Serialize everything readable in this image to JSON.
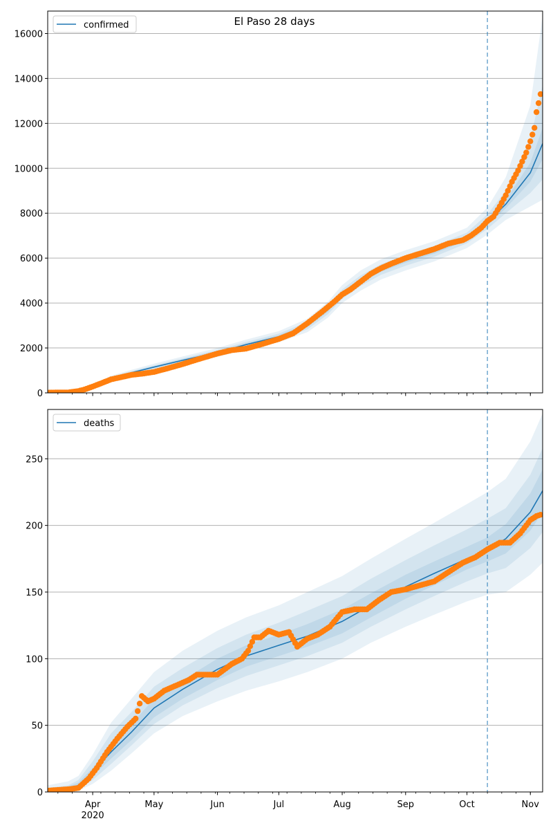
{
  "figure_title": "El Paso 28 days",
  "colors": {
    "model_line": "#1f77b4",
    "observed_points": "#ff7f0e",
    "band": "#1f77b4",
    "cutoff_line": "#1f77b4",
    "grid": "#b0b0b0"
  },
  "chart_data": [
    {
      "type": "line",
      "id": "confirmed",
      "title": "El Paso 28 days",
      "legend": {
        "label": "confirmed",
        "placement": "top-left"
      },
      "x_axis_labels": [
        "Apr",
        "May",
        "Jun",
        "Jul",
        "Aug",
        "Sep",
        "Oct",
        "Nov"
      ],
      "x_axis_year": "2020",
      "xlim": [
        "2020-03-10",
        "2020-11-07"
      ],
      "ylim": [
        0,
        17000
      ],
      "yticks": [
        0,
        2000,
        4000,
        6000,
        8000,
        10000,
        12000,
        14000,
        16000
      ],
      "ytick_labels": [
        "0",
        "2000",
        "4000",
        "6000",
        "8000",
        "10000",
        "12000",
        "14000",
        "16000"
      ],
      "forecast_start": "2020-10-11",
      "grid": "horizontal",
      "model": {
        "name": "confirmed",
        "x": [
          "2020-03-10",
          "2020-03-20",
          "2020-03-25",
          "2020-04-01",
          "2020-04-10",
          "2020-04-20",
          "2020-05-01",
          "2020-05-15",
          "2020-06-01",
          "2020-06-15",
          "2020-07-01",
          "2020-07-15",
          "2020-07-25",
          "2020-08-01",
          "2020-08-10",
          "2020-08-20",
          "2020-09-01",
          "2020-09-15",
          "2020-10-01",
          "2020-10-11",
          "2020-10-20",
          "2020-11-01",
          "2020-11-07"
        ],
        "y": [
          0,
          30,
          100,
          300,
          650,
          900,
          1150,
          1450,
          1800,
          2150,
          2500,
          3000,
          3700,
          4400,
          5000,
          5500,
          5900,
          6300,
          6900,
          7600,
          8400,
          9800,
          11100
        ],
        "bands": [
          {
            "lower": [
              0,
              10,
              60,
              220,
              550,
              780,
              1000,
              1280,
              1600,
              1930,
              2250,
              2700,
              3350,
              4000,
              4550,
              5050,
              5450,
              5850,
              6450,
              7050,
              7700,
              8300,
              8600
            ],
            "upper": [
              0,
              50,
              150,
              380,
              760,
              1030,
              1300,
              1620,
              2000,
              2370,
              2750,
              3300,
              4050,
              4800,
              5450,
              5950,
              6350,
              6750,
              7350,
              8250,
              9600,
              12800,
              16800
            ]
          },
          {
            "lower": [
              0,
              20,
              75,
              250,
              590,
              830,
              1060,
              1350,
              1680,
              2020,
              2360,
              2830,
              3500,
              4180,
              4760,
              5260,
              5660,
              6060,
              6660,
              7300,
              8000,
              8900,
              9500
            ],
            "upper": [
              0,
              40,
              125,
              340,
              710,
              970,
              1230,
              1540,
              1910,
              2270,
              2640,
              3160,
              3890,
              4610,
              5230,
              5730,
              6130,
              6540,
              7140,
              7950,
              9000,
              11300,
              13700
            ]
          },
          {
            "lower": [
              0,
              25,
              90,
              275,
              620,
              870,
              1110,
              1400,
              1750,
              2090,
              2440,
              2930,
              3610,
              4300,
              4900,
              5400,
              5800,
              6200,
              6800,
              7460,
              8220,
              9400,
              10400
            ],
            "upper": [
              0,
              35,
              110,
              320,
              680,
              935,
              1190,
              1500,
              1860,
              2210,
              2570,
              3070,
              3790,
              4500,
              5100,
              5600,
              6000,
              6400,
              7000,
              7740,
              8600,
              10250,
              11800
            ]
          }
        ]
      },
      "observed": {
        "x": [
          "2020-03-10",
          "2020-03-20",
          "2020-03-25",
          "2020-03-28",
          "2020-04-01",
          "2020-04-05",
          "2020-04-10",
          "2020-04-15",
          "2020-04-20",
          "2020-04-25",
          "2020-05-01",
          "2020-05-08",
          "2020-05-15",
          "2020-05-22",
          "2020-06-01",
          "2020-06-08",
          "2020-06-15",
          "2020-06-22",
          "2020-07-01",
          "2020-07-08",
          "2020-07-15",
          "2020-07-22",
          "2020-07-28",
          "2020-08-01",
          "2020-08-05",
          "2020-08-10",
          "2020-08-15",
          "2020-08-20",
          "2020-08-25",
          "2020-09-01",
          "2020-09-08",
          "2020-09-15",
          "2020-09-22",
          "2020-09-29",
          "2020-10-03",
          "2020-10-08",
          "2020-10-11",
          "2020-10-14",
          "2020-10-17",
          "2020-10-20",
          "2020-10-23",
          "2020-10-26",
          "2020-10-28",
          "2020-10-30",
          "2020-11-01",
          "2020-11-03",
          "2020-11-04",
          "2020-11-05",
          "2020-11-06"
        ],
        "y": [
          10,
          20,
          80,
          150,
          280,
          420,
          600,
          700,
          800,
          850,
          930,
          1100,
          1280,
          1480,
          1750,
          1900,
          1970,
          2150,
          2400,
          2650,
          3100,
          3600,
          4050,
          4380,
          4600,
          4950,
          5300,
          5550,
          5750,
          6000,
          6200,
          6400,
          6650,
          6800,
          7000,
          7350,
          7650,
          7850,
          8300,
          8800,
          9400,
          9900,
          10300,
          10700,
          11200,
          11800,
          12500,
          12900,
          13300
        ]
      }
    },
    {
      "type": "line",
      "id": "deaths",
      "legend": {
        "label": "deaths",
        "placement": "top-left"
      },
      "x_axis_labels": [
        "Apr",
        "May",
        "Jun",
        "Jul",
        "Aug",
        "Sep",
        "Oct",
        "Nov"
      ],
      "x_axis_year": "2020",
      "xlim": [
        "2020-03-10",
        "2020-11-07"
      ],
      "ylim": [
        0,
        287
      ],
      "yticks": [
        0,
        50,
        100,
        150,
        200,
        250
      ],
      "ytick_labels": [
        "0",
        "50",
        "100",
        "150",
        "200",
        "250"
      ],
      "forecast_start": "2020-10-11",
      "grid": "horizontal",
      "model": {
        "name": "deaths",
        "x": [
          "2020-03-10",
          "2020-03-20",
          "2020-03-25",
          "2020-04-01",
          "2020-04-10",
          "2020-04-20",
          "2020-05-01",
          "2020-05-15",
          "2020-06-01",
          "2020-06-15",
          "2020-07-01",
          "2020-07-15",
          "2020-08-01",
          "2020-08-15",
          "2020-09-01",
          "2020-09-15",
          "2020-10-01",
          "2020-10-11",
          "2020-10-20",
          "2020-11-01",
          "2020-11-07"
        ],
        "y": [
          0,
          2,
          5,
          15,
          30,
          45,
          63,
          77,
          92,
          102,
          110,
          117,
          128,
          140,
          154,
          164,
          175,
          182,
          190,
          210,
          226
        ],
        "bands": [
          {
            "lower": [
              0,
              0,
              1,
              6,
              16,
              29,
              44,
              57,
              68,
              76,
              83,
              90,
              100,
              112,
              124,
              133,
              143,
              148,
              150,
              163,
              172
            ],
            "upper": [
              5,
              8,
              12,
              28,
              52,
              70,
              90,
              106,
              121,
              131,
              140,
              150,
              162,
              175,
              190,
              202,
              216,
              225,
              235,
              263,
              284
            ]
          },
          {
            "lower": [
              0,
              1,
              2,
              9,
              21,
              35,
              51,
              65,
              78,
              87,
              95,
              102,
              112,
              124,
              137,
              147,
              158,
              164,
              168,
              183,
              195
            ],
            "upper": [
              3,
              5,
              9,
              23,
              44,
              60,
              79,
              93,
              108,
              118,
              127,
              136,
              147,
              160,
              174,
              185,
              197,
              205,
              213,
              238,
              258
            ]
          },
          {
            "lower": [
              0,
              1,
              3,
              12,
              25,
              39,
              56,
              70,
              84,
              94,
              102,
              109,
              119,
              131,
              145,
              155,
              167,
              173,
              179,
              196,
              210
            ],
            "upper": [
              2,
              4,
              7,
              18,
              36,
              51,
              70,
              84,
              100,
              110,
              118,
              126,
              137,
              149,
              163,
              173,
              184,
              191,
              201,
              224,
              242
            ]
          }
        ]
      },
      "observed": {
        "x": [
          "2020-03-10",
          "2020-03-20",
          "2020-03-25",
          "2020-03-30",
          "2020-04-03",
          "2020-04-08",
          "2020-04-13",
          "2020-04-18",
          "2020-04-22",
          "2020-04-25",
          "2020-04-28",
          "2020-05-01",
          "2020-05-06",
          "2020-05-12",
          "2020-05-18",
          "2020-05-22",
          "2020-05-28",
          "2020-06-01",
          "2020-06-08",
          "2020-06-13",
          "2020-06-16",
          "2020-06-19",
          "2020-06-22",
          "2020-06-26",
          "2020-07-01",
          "2020-07-06",
          "2020-07-10",
          "2020-07-15",
          "2020-07-20",
          "2020-07-26",
          "2020-08-01",
          "2020-08-07",
          "2020-08-13",
          "2020-08-19",
          "2020-08-25",
          "2020-09-01",
          "2020-09-08",
          "2020-09-15",
          "2020-09-22",
          "2020-09-29",
          "2020-10-05",
          "2020-10-11",
          "2020-10-17",
          "2020-10-22",
          "2020-10-27",
          "2020-11-01",
          "2020-11-04",
          "2020-11-06"
        ],
        "y": [
          1,
          2,
          3,
          10,
          18,
          30,
          40,
          49,
          55,
          72,
          68,
          70,
          76,
          80,
          84,
          88,
          88,
          88,
          96,
          100,
          106,
          116,
          116,
          121,
          118,
          120,
          109,
          115,
          118,
          124,
          135,
          137,
          137,
          144,
          150,
          152,
          155,
          158,
          165,
          172,
          176,
          182,
          187,
          187,
          194,
          204,
          207,
          208
        ]
      }
    }
  ]
}
